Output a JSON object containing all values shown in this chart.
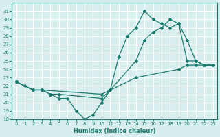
{
  "xlabel": "Humidex (Indice chaleur)",
  "bg_color": "#d8eeee",
  "grid_color": "#ffffff",
  "line_color": "#1a7a6e",
  "xlim": [
    -0.5,
    23.5
  ],
  "ylim": [
    18,
    32
  ],
  "xticks": [
    0,
    1,
    2,
    3,
    4,
    5,
    6,
    7,
    8,
    9,
    10,
    11,
    12,
    13,
    14,
    15,
    16,
    17,
    18,
    19,
    20,
    21,
    22,
    23
  ],
  "yticks": [
    18,
    19,
    20,
    21,
    22,
    23,
    24,
    25,
    26,
    27,
    28,
    29,
    30,
    31
  ],
  "series": [
    {
      "x": [
        0,
        1,
        2,
        3,
        4,
        5,
        6,
        7,
        8,
        9,
        10,
        11,
        12,
        13,
        14,
        15,
        16,
        17,
        18,
        19,
        20,
        21,
        22,
        23
      ],
      "y": [
        22.5,
        22.0,
        21.5,
        21.5,
        21.0,
        20.5,
        20.5,
        19.0,
        18.0,
        18.5,
        20.0,
        21.5,
        25.5,
        28.0,
        29.0,
        31.0,
        30.0,
        29.5,
        29.0,
        29.5,
        25.0,
        25.0,
        24.5,
        24.5
      ]
    },
    {
      "x": [
        0,
        2,
        3,
        4,
        5,
        10,
        11,
        14,
        15,
        16,
        17,
        18,
        19,
        20,
        21,
        22,
        23
      ],
      "y": [
        22.5,
        21.5,
        21.5,
        21.0,
        21.0,
        20.5,
        21.5,
        25.0,
        27.5,
        28.5,
        29.0,
        30.0,
        29.5,
        27.5,
        25.0,
        24.5,
        24.5
      ]
    },
    {
      "x": [
        0,
        2,
        3,
        10,
        14,
        19,
        20,
        21,
        22,
        23
      ],
      "y": [
        22.5,
        21.5,
        21.5,
        21.0,
        23.0,
        24.0,
        24.5,
        24.5,
        24.5,
        24.5
      ]
    }
  ]
}
